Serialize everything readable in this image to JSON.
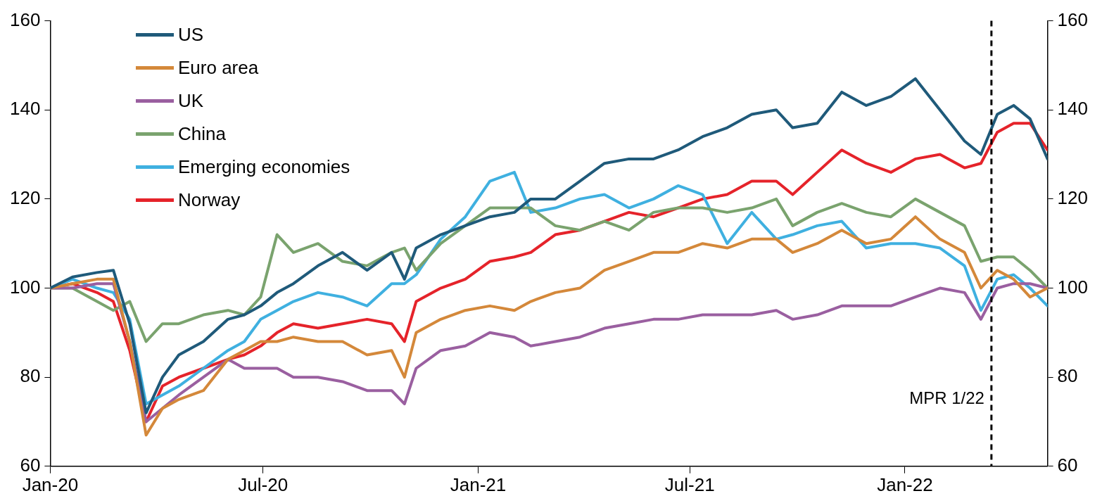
{
  "chart_data": {
    "type": "line",
    "x": [
      "2020-01-01",
      "2020-01-20",
      "2020-02-10",
      "2020-02-24",
      "2020-03-09",
      "2020-03-23",
      "2020-04-06",
      "2020-04-20",
      "2020-05-11",
      "2020-06-01",
      "2020-06-15",
      "2020-06-29",
      "2020-07-13",
      "2020-07-27",
      "2020-08-17",
      "2020-09-07",
      "2020-09-28",
      "2020-10-19",
      "2020-10-30",
      "2020-11-09",
      "2020-11-30",
      "2020-12-21",
      "2021-01-11",
      "2021-02-01",
      "2021-02-15",
      "2021-03-08",
      "2021-03-29",
      "2021-04-19",
      "2021-05-10",
      "2021-05-31",
      "2021-06-21",
      "2021-07-12",
      "2021-08-02",
      "2021-08-23",
      "2021-09-13",
      "2021-09-27",
      "2021-10-18",
      "2021-11-08",
      "2021-11-29",
      "2021-12-20",
      "2022-01-10",
      "2022-01-31",
      "2022-02-21",
      "2022-03-07",
      "2022-03-21",
      "2022-04-04",
      "2022-04-18",
      "2022-05-03"
    ],
    "series": [
      {
        "name": "US",
        "color": "#1f5a7a",
        "values": [
          100,
          102.5,
          103.5,
          104,
          92,
          72,
          80,
          85,
          88,
          93,
          94,
          96,
          99,
          101,
          105,
          108,
          104,
          108,
          102,
          109,
          112,
          114,
          116,
          117,
          120,
          120,
          124,
          128,
          129,
          129,
          131,
          134,
          136,
          139,
          140,
          136,
          137,
          144,
          141,
          143,
          147,
          140,
          133,
          130,
          139,
          141,
          138,
          129
        ]
      },
      {
        "name": "Euro area",
        "color": "#d4883a",
        "values": [
          100,
          101,
          102,
          102,
          88,
          67,
          73,
          75,
          77,
          84,
          86,
          88,
          88,
          89,
          88,
          88,
          85,
          86,
          80,
          90,
          93,
          95,
          96,
          95,
          97,
          99,
          100,
          104,
          106,
          108,
          108,
          110,
          109,
          111,
          111,
          108,
          110,
          113,
          110,
          111,
          116,
          111,
          108,
          100,
          104,
          102,
          98,
          100
        ]
      },
      {
        "name": "UK",
        "color": "#9a5fa0",
        "values": [
          100,
          100,
          101,
          101,
          88,
          70,
          73,
          76,
          80,
          84,
          82,
          82,
          82,
          80,
          80,
          79,
          77,
          77,
          74,
          82,
          86,
          87,
          90,
          89,
          87,
          88,
          89,
          91,
          92,
          93,
          93,
          94,
          94,
          94,
          95,
          93,
          94,
          96,
          96,
          96,
          98,
          100,
          99,
          93,
          100,
          101,
          101,
          100
        ]
      },
      {
        "name": "China",
        "color": "#7aa36e",
        "values": [
          100,
          100,
          97,
          95,
          97,
          88,
          92,
          92,
          94,
          95,
          94,
          98,
          112,
          108,
          110,
          106,
          105,
          108,
          109,
          104,
          110,
          114,
          118,
          118,
          118,
          114,
          113,
          115,
          113,
          117,
          118,
          118,
          117,
          118,
          120,
          114,
          117,
          119,
          117,
          116,
          120,
          117,
          114,
          106,
          107,
          107,
          104,
          100
        ]
      },
      {
        "name": "Emerging economies",
        "color": "#3fb0e0",
        "values": [
          100,
          102,
          100,
          99,
          93,
          74,
          76,
          78,
          82,
          86,
          88,
          93,
          95,
          97,
          99,
          98,
          96,
          101,
          101,
          103,
          111,
          116,
          124,
          126,
          117,
          118,
          120,
          121,
          118,
          120,
          123,
          121,
          110,
          117,
          111,
          112,
          114,
          115,
          109,
          110,
          110,
          109,
          105,
          95,
          102,
          103,
          100,
          96
        ]
      },
      {
        "name": "Norway",
        "color": "#e5232a",
        "values": [
          100,
          101,
          99,
          97,
          86,
          70,
          78,
          80,
          82,
          84,
          85,
          87,
          90,
          92,
          91,
          92,
          93,
          92,
          88,
          97,
          100,
          102,
          106,
          107,
          108,
          112,
          113,
          115,
          117,
          116,
          118,
          120,
          121,
          124,
          124,
          121,
          126,
          131,
          128,
          126,
          129,
          130,
          127,
          128,
          135,
          137,
          137,
          131
        ]
      }
    ],
    "xlim": [
      "2020-01-01",
      "2022-05-03"
    ],
    "xticks": [
      {
        "value": "2020-01-01",
        "label": "Jan-20"
      },
      {
        "value": "2020-07-01",
        "label": "Jul-20"
      },
      {
        "value": "2021-01-01",
        "label": "Jan-21"
      },
      {
        "value": "2021-07-01",
        "label": "Jul-21"
      },
      {
        "value": "2022-01-01",
        "label": "Jan-22"
      }
    ],
    "ylim": [
      60,
      160
    ],
    "yticks": [
      60,
      80,
      100,
      120,
      140,
      160
    ],
    "y2lim": [
      60,
      160
    ],
    "y2ticks": [
      60,
      80,
      100,
      120,
      140,
      160
    ],
    "ref_lines": [
      {
        "axis": "x",
        "value": "2022-03-16",
        "label": "MPR 1/22",
        "color": "#000000",
        "line_style": "dashed"
      }
    ],
    "legend": "top left",
    "grid": false
  }
}
